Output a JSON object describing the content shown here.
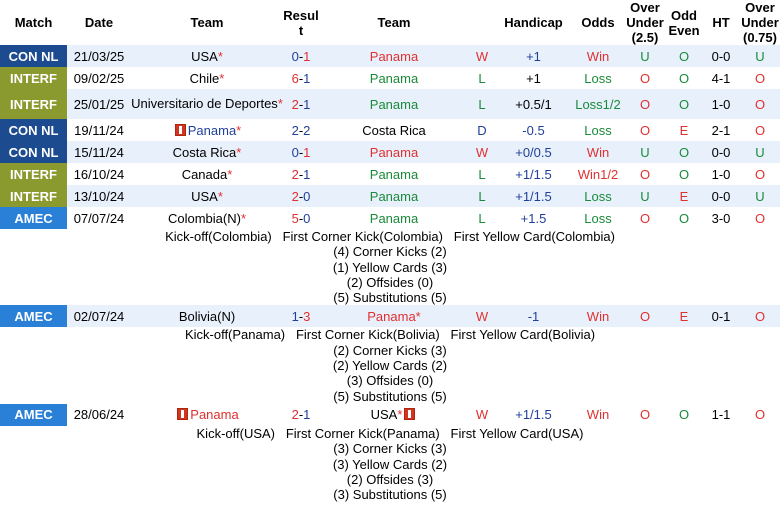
{
  "headers": {
    "match": "Match",
    "date": "Date",
    "team1": "Team",
    "result": "Resul\nt",
    "team2": "Team",
    "wl": "",
    "handicap": "Handicap",
    "odds": "Odds",
    "over": "Over\nUnder\n(2.5)",
    "oddeven": "Odd\nEven",
    "ht": "HT",
    "over2": "Over\nUnder\n(0.75)"
  },
  "rows": [
    {
      "comp": "CON NL",
      "date": "21/03/25",
      "team1": "USA",
      "team1_star": "*",
      "team1_flag": false,
      "score_a": "0",
      "score_b": "1",
      "score_a_color": "blue",
      "score_b_color": "red",
      "team2": "Panama",
      "team2_star": "",
      "team2_flag": false,
      "team2_color": "red",
      "wl": "W",
      "wl_color": "red",
      "handicap": "+1",
      "handicap_color": "blue",
      "odds": "Win",
      "odds_color": "red",
      "ou": "U",
      "ou_color": "green",
      "oe": "O",
      "oe_color": "green",
      "ht": "0-0",
      "ou2": "U",
      "ou2_color": "green"
    },
    {
      "comp": "INTERF",
      "date": "09/02/25",
      "team1": "Chile",
      "team1_star": "*",
      "team1_flag": false,
      "score_a": "6",
      "score_b": "1",
      "score_a_color": "red",
      "score_b_color": "blue",
      "team2": "Panama",
      "team2_star": "",
      "team2_flag": false,
      "team2_color": "green",
      "wl": "L",
      "wl_color": "green",
      "handicap": "+1",
      "handicap_color": "black",
      "odds": "Loss",
      "odds_color": "green",
      "ou": "O",
      "ou_color": "red",
      "oe": "O",
      "oe_color": "green",
      "ht": "4-1",
      "ou2": "O",
      "ou2_color": "red"
    },
    {
      "comp": "INTERF",
      "date": "25/01/25",
      "team1": "Universitario de Deportes",
      "team1_star": "*",
      "team1_flag": false,
      "score_a": "2",
      "score_b": "1",
      "score_a_color": "red",
      "score_b_color": "blue",
      "team2": "Panama",
      "team2_star": "",
      "team2_flag": false,
      "team2_color": "green",
      "wl": "L",
      "wl_color": "green",
      "handicap": "+0.5/1",
      "handicap_color": "black",
      "odds": "Loss1/2",
      "odds_color": "green",
      "ou": "O",
      "ou_color": "red",
      "oe": "O",
      "oe_color": "green",
      "ht": "1-0",
      "ou2": "O",
      "ou2_color": "red"
    },
    {
      "comp": "CON NL",
      "date": "19/11/24",
      "team1": "Panama",
      "team1_star": "*",
      "team1_flag": true,
      "team1_color": "blue",
      "score_a": "2",
      "score_b": "2",
      "score_a_color": "blue",
      "score_b_color": "blue",
      "team2": "Costa Rica",
      "team2_star": "",
      "team2_flag": false,
      "team2_color": "black",
      "wl": "D",
      "wl_color": "blue",
      "handicap": "-0.5",
      "handicap_color": "blue",
      "odds": "Loss",
      "odds_color": "green",
      "ou": "O",
      "ou_color": "red",
      "oe": "E",
      "oe_color": "red",
      "ht": "2-1",
      "ou2": "O",
      "ou2_color": "red"
    },
    {
      "comp": "CON NL",
      "date": "15/11/24",
      "team1": "Costa Rica",
      "team1_star": "*",
      "team1_flag": false,
      "score_a": "0",
      "score_b": "1",
      "score_a_color": "blue",
      "score_b_color": "red",
      "team2": "Panama",
      "team2_star": "",
      "team2_flag": false,
      "team2_color": "red",
      "wl": "W",
      "wl_color": "red",
      "handicap": "+0/0.5",
      "handicap_color": "blue",
      "odds": "Win",
      "odds_color": "red",
      "ou": "U",
      "ou_color": "green",
      "oe": "O",
      "oe_color": "green",
      "ht": "0-0",
      "ou2": "U",
      "ou2_color": "green"
    },
    {
      "comp": "INTERF",
      "date": "16/10/24",
      "team1": "Canada",
      "team1_star": "*",
      "team1_flag": false,
      "score_a": "2",
      "score_b": "1",
      "score_a_color": "red",
      "score_b_color": "blue",
      "team2": "Panama",
      "team2_star": "",
      "team2_flag": false,
      "team2_color": "green",
      "wl": "L",
      "wl_color": "green",
      "handicap": "+1/1.5",
      "handicap_color": "blue",
      "odds": "Win1/2",
      "odds_color": "red",
      "ou": "O",
      "ou_color": "red",
      "oe": "O",
      "oe_color": "green",
      "ht": "1-0",
      "ou2": "O",
      "ou2_color": "red"
    },
    {
      "comp": "INTERF",
      "date": "13/10/24",
      "team1": "USA",
      "team1_star": "*",
      "team1_flag": false,
      "score_a": "2",
      "score_b": "0",
      "score_a_color": "red",
      "score_b_color": "blue",
      "team2": "Panama",
      "team2_star": "",
      "team2_flag": false,
      "team2_color": "green",
      "wl": "L",
      "wl_color": "green",
      "handicap": "+1/1.5",
      "handicap_color": "blue",
      "odds": "Loss",
      "odds_color": "green",
      "ou": "U",
      "ou_color": "green",
      "oe": "E",
      "oe_color": "red",
      "ht": "0-0",
      "ou2": "U",
      "ou2_color": "green"
    },
    {
      "comp": "AMEC",
      "date": "07/07/24",
      "team1": "Colombia(N)",
      "team1_star": "*",
      "team1_flag": false,
      "score_a": "5",
      "score_b": "0",
      "score_a_color": "red",
      "score_b_color": "blue",
      "team2": "Panama",
      "team2_star": "",
      "team2_flag": false,
      "team2_color": "green",
      "wl": "L",
      "wl_color": "green",
      "handicap": "+1.5",
      "handicap_color": "blue",
      "odds": "Loss",
      "odds_color": "green",
      "ou": "O",
      "ou_color": "red",
      "oe": "O",
      "oe_color": "green",
      "ht": "3-0",
      "ou2": "O",
      "ou2_color": "red",
      "detail": [
        "Kick-off(Colombia)   First Corner Kick(Colombia)   First Yellow Card(Colombia)",
        "(4) Corner Kicks (2)",
        "(1) Yellow Cards (3)",
        "(2) Offsides (0)",
        "(5) Substitutions (5)"
      ]
    },
    {
      "comp": "AMEC",
      "date": "02/07/24",
      "team1": "Bolivia(N)",
      "team1_star": "",
      "team1_flag": false,
      "score_a": "1",
      "score_b": "3",
      "score_a_color": "blue",
      "score_b_color": "red",
      "team2": "Panama",
      "team2_star": "*",
      "team2_flag": false,
      "team2_color": "red",
      "wl": "W",
      "wl_color": "red",
      "handicap": "-1",
      "handicap_color": "blue",
      "odds": "Win",
      "odds_color": "red",
      "ou": "O",
      "ou_color": "red",
      "oe": "E",
      "oe_color": "red",
      "ht": "0-1",
      "ou2": "O",
      "ou2_color": "red",
      "detail": [
        "Kick-off(Panama)   First Corner Kick(Bolivia)   First Yellow Card(Bolivia)",
        "(2) Corner Kicks (3)",
        "(2) Yellow Cards (2)",
        "(3) Offsides (0)",
        "(5) Substitutions (5)"
      ]
    },
    {
      "comp": "AMEC",
      "date": "28/06/24",
      "team1": "Panama",
      "team1_star": "",
      "team1_flag": true,
      "team1_color": "red",
      "score_a": "2",
      "score_b": "1",
      "score_a_color": "red",
      "score_b_color": "blue",
      "team2": "USA",
      "team2_star": "*",
      "team2_flag": true,
      "team2_color": "black",
      "wl": "W",
      "wl_color": "red",
      "handicap": "+1/1.5",
      "handicap_color": "blue",
      "odds": "Win",
      "odds_color": "red",
      "ou": "O",
      "ou_color": "red",
      "oe": "O",
      "oe_color": "green",
      "ht": "1-1",
      "ou2": "O",
      "ou2_color": "red",
      "detail": [
        "Kick-off(USA)   First Corner Kick(Panama)   First Yellow Card(USA)",
        "(3) Corner Kicks (3)",
        "(3) Yellow Cards (2)",
        "(2) Offsides (3)",
        "(3) Substitutions (5)"
      ]
    }
  ],
  "colors": {
    "con_nl": "#1d4b8f",
    "interf": "#8a9a2e",
    "amec": "#2a7fd6",
    "red": "#e03030",
    "blue": "#1f3f9a",
    "green": "#1a8a3a",
    "row_alt": "#e8f1fb"
  }
}
